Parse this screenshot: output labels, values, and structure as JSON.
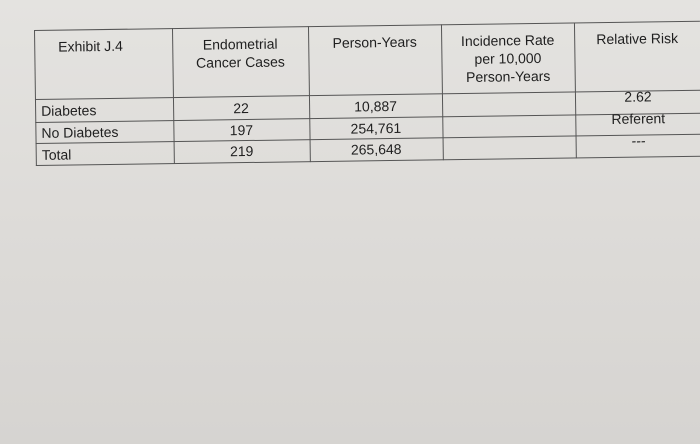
{
  "exhibit": {
    "title": "Exhibit J.4"
  },
  "headers": {
    "cases_line1": "Endometrial",
    "cases_line2": "Cancer Cases",
    "person_years": "Person-Years",
    "incidence_line1": "Incidence Rate",
    "incidence_line2": "per 10,000",
    "incidence_line3": "Person-Years",
    "relative_risk": "Relative Risk"
  },
  "rows": [
    {
      "label": "Diabetes",
      "cases": "22",
      "person_years": "10,887",
      "incidence_rate": "",
      "relative_risk": "2.62"
    },
    {
      "label": "No Diabetes",
      "cases": "197",
      "person_years": "254,761",
      "incidence_rate": "",
      "relative_risk": "Referent"
    },
    {
      "label": "Total",
      "cases": "219",
      "person_years": "265,648",
      "incidence_rate": "",
      "relative_risk": "---"
    }
  ]
}
